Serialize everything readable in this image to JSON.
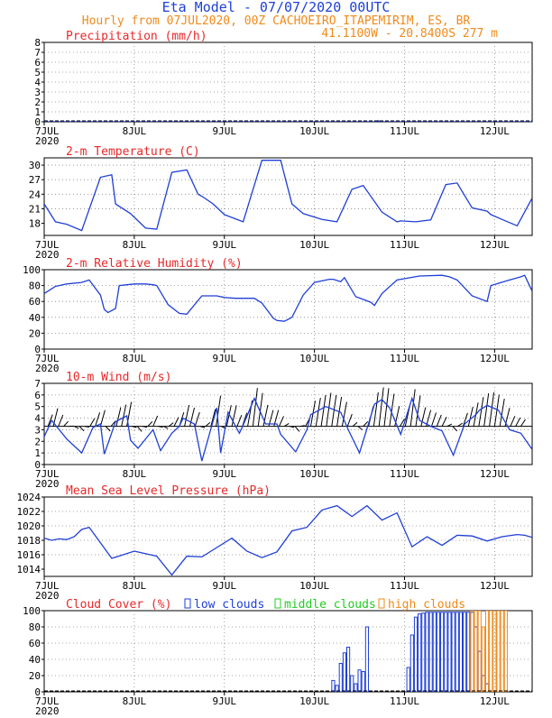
{
  "header": {
    "title": "Eta Model - 07/07/2020 00UTC",
    "line2": "Hourly from 07JUL2020, 00Z  CACHOEIRO_ITAPEMIRIM, ES, BR",
    "line3": "41.1100W - 20.8400S     277  m"
  },
  "colors": {
    "title": "#1f3fd6",
    "subtitle": "#f08a1a",
    "label": "#e8282a",
    "series": "#1f3fd6",
    "low": "#1f3fd6",
    "mid": "#22cc22",
    "high": "#f08a1a"
  },
  "x_axis": {
    "ticks": [
      {
        "label": "7JUL",
        "hour": 0
      },
      {
        "label": "8JUL",
        "hour": 24
      },
      {
        "label": "9JUL",
        "hour": 48
      },
      {
        "label": "10JUL",
        "hour": 72
      },
      {
        "label": "11JUL",
        "hour": 96
      },
      {
        "label": "12JUL",
        "hour": 120
      }
    ],
    "year": "2020",
    "range_hours": [
      0,
      130
    ]
  },
  "chart_data": [
    {
      "type": "line",
      "title": "Precipitation (mm/h)",
      "ylim": [
        0,
        8
      ],
      "yticks": [
        "0",
        "1",
        "2",
        "3",
        "4",
        "5",
        "6",
        "7",
        "8"
      ],
      "x": [
        0,
        88,
        89,
        90,
        130
      ],
      "values": [
        0,
        0,
        0.1,
        0,
        0
      ]
    },
    {
      "type": "line",
      "title": "2-m Temperature (C)",
      "ylim": [
        15.5,
        31.5
      ],
      "yticks": [
        "18",
        "21",
        "24",
        "27",
        "30"
      ],
      "ytick_values": [
        18,
        21,
        24,
        27,
        30
      ],
      "x": [
        0,
        3,
        6,
        10,
        15,
        18,
        19,
        23,
        27,
        30,
        34,
        38,
        41,
        42,
        45,
        48,
        53,
        58,
        63,
        64,
        66,
        69,
        74,
        78,
        82,
        85,
        90,
        94,
        95,
        99,
        103,
        107,
        110,
        114,
        118,
        119,
        122,
        126,
        130
      ],
      "values": [
        22,
        18.3,
        17.8,
        16.5,
        27.5,
        28,
        22,
        20,
        17,
        16.8,
        28.5,
        29,
        24,
        23.6,
        22,
        19.8,
        18.3,
        31,
        31,
        28,
        22,
        20,
        18.8,
        18.3,
        25,
        25.8,
        20.3,
        18.3,
        18.5,
        18.3,
        18.7,
        26,
        26.3,
        21.2,
        20.5,
        19.8,
        18.8,
        17.5,
        23.2
      ]
    },
    {
      "type": "line",
      "title": "2-m Relative Humidity (%)",
      "ylim": [
        0,
        100
      ],
      "yticks": [
        "0",
        "20",
        "40",
        "60",
        "80",
        "100"
      ],
      "ytick_values": [
        0,
        20,
        40,
        60,
        80,
        100
      ],
      "x": [
        0,
        3,
        6,
        10,
        12,
        15,
        16,
        17,
        19,
        20,
        24,
        27,
        29,
        30,
        33,
        36,
        38,
        42,
        46,
        48,
        51,
        56,
        58,
        61,
        62,
        64,
        66,
        69,
        72,
        76,
        77,
        79,
        80,
        83,
        87,
        88,
        90,
        94,
        100,
        106,
        108,
        110,
        114,
        118,
        119,
        124,
        127,
        128,
        130
      ],
      "values": [
        70,
        79,
        82,
        84,
        87,
        68,
        50,
        46,
        51,
        80,
        82,
        82,
        81,
        80,
        56,
        45,
        44,
        67,
        67,
        65,
        64,
        64,
        58,
        39,
        36,
        35,
        40,
        68,
        84,
        88,
        88,
        85,
        90,
        66,
        59,
        55,
        70,
        87,
        92,
        93,
        91,
        87,
        67,
        60,
        80,
        87,
        91,
        93,
        73
      ]
    },
    {
      "type": "line",
      "title": "10-m Wind (m/s)",
      "ylim": [
        0,
        7
      ],
      "yticks": [
        "0",
        "1",
        "2",
        "3",
        "4",
        "5",
        "6",
        "7"
      ],
      "ytick_values": [
        0,
        1,
        2,
        3,
        4,
        5,
        6,
        7
      ],
      "x": [
        0,
        2,
        6,
        10,
        13,
        15,
        16,
        17,
        19,
        22,
        23,
        25,
        29,
        31,
        34,
        36,
        37,
        40,
        42,
        46,
        47,
        49,
        52,
        53,
        56,
        59,
        62,
        63,
        67,
        70,
        71,
        75,
        79,
        81,
        84,
        88,
        90,
        92,
        95,
        98,
        100,
        103,
        106,
        109,
        112,
        115,
        116,
        118,
        121,
        124,
        127,
        130
      ],
      "values": [
        2.4,
        3.8,
        2.2,
        1.0,
        3.2,
        3.5,
        0.9,
        1.8,
        3.7,
        4.2,
        2.1,
        1.4,
        3.0,
        1.2,
        2.7,
        3.3,
        4.0,
        3.5,
        0.3,
        4.9,
        1.0,
        4.5,
        2.7,
        3.4,
        5.7,
        3.5,
        3.5,
        2.6,
        1.1,
        3.0,
        4.3,
        5.0,
        4.5,
        3.0,
        1.0,
        5.2,
        5.6,
        4.9,
        2.6,
        5.7,
        3.8,
        3.3,
        2.9,
        0.8,
        3.5,
        4.3,
        4.7,
        5.1,
        4.7,
        3.0,
        2.7,
        1.3
      ]
    },
    {
      "type": "line",
      "title": "Mean Sea Level Pressure (hPa)",
      "ylim": [
        1013,
        1024
      ],
      "yticks": [
        "1014",
        "1016",
        "1018",
        "1020",
        "1022",
        "1024"
      ],
      "ytick_values": [
        1014,
        1016,
        1018,
        1020,
        1022,
        1024
      ],
      "x": [
        0,
        2,
        4,
        6,
        8,
        10,
        12,
        18,
        24,
        30,
        34,
        38,
        42,
        46,
        50,
        54,
        58,
        62,
        66,
        70,
        74,
        78,
        82,
        86,
        90,
        94,
        98,
        102,
        106,
        110,
        114,
        118,
        122,
        126,
        128,
        130
      ],
      "values": [
        1018.3,
        1018,
        1018.2,
        1018.1,
        1018.5,
        1019.5,
        1019.8,
        1015.5,
        1016.5,
        1015.8,
        1013.2,
        1015.8,
        1015.7,
        1017,
        1018.3,
        1016.5,
        1015.6,
        1016.4,
        1019.3,
        1019.8,
        1022.2,
        1022.8,
        1021.3,
        1022.8,
        1020.8,
        1021.8,
        1017.1,
        1018.5,
        1017.3,
        1018.7,
        1018.6,
        1017.9,
        1018.5,
        1018.8,
        1018.7,
        1018.4
      ]
    },
    {
      "type": "bar",
      "title": "Cloud Cover (%)",
      "ylim": [
        0,
        100
      ],
      "yticks": [
        "0",
        "20",
        "40",
        "60",
        "80",
        "100"
      ],
      "ytick_values": [
        0,
        20,
        40,
        60,
        80,
        100
      ],
      "legend": [
        "low clouds",
        "middle clouds",
        "high clouds"
      ],
      "series": [
        {
          "name": "low clouds",
          "x": [
            77,
            78,
            79,
            80,
            81,
            82,
            83,
            84,
            85,
            86,
            97,
            98,
            99,
            100,
            101,
            102,
            103,
            104,
            105,
            106,
            107,
            108,
            109,
            110,
            111,
            112,
            113,
            114,
            115,
            116,
            117,
            118
          ],
          "values": [
            14,
            8,
            35,
            48,
            55,
            20,
            10,
            27,
            25,
            80,
            30,
            70,
            92,
            96,
            97,
            98,
            98,
            98,
            98,
            98,
            98,
            98,
            98,
            98,
            98,
            98,
            98,
            98,
            80,
            50,
            20,
            10
          ]
        },
        {
          "name": "middle clouds",
          "x": [],
          "values": []
        },
        {
          "name": "high clouds",
          "x": [
            114,
            115,
            116,
            117,
            118,
            119,
            120,
            121,
            122,
            123
          ],
          "values": [
            100,
            100,
            100,
            80,
            100,
            100,
            100,
            100,
            100,
            100
          ]
        }
      ]
    }
  ]
}
